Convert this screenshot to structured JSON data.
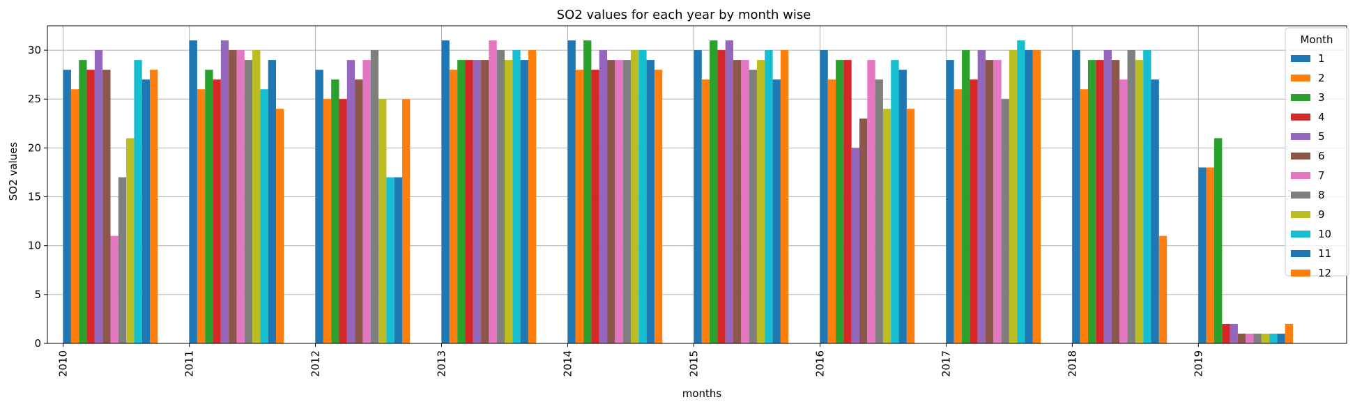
{
  "chart_data": {
    "type": "bar",
    "title": "SO2 values for each year by month wise",
    "xlabel": "months",
    "ylabel": "SO2 values",
    "ylim": [
      0,
      32.5
    ],
    "yticks": [
      0,
      5,
      10,
      15,
      20,
      25,
      30
    ],
    "grid": true,
    "legend": {
      "title": "Month",
      "placement": "top-right"
    },
    "categories": [
      "2010",
      "2011",
      "2012",
      "2013",
      "2014",
      "2015",
      "2016",
      "2017",
      "2018",
      "2019"
    ],
    "series": [
      {
        "name": "1",
        "color": "#1f77b4",
        "values": [
          28,
          31,
          28,
          31,
          31,
          30,
          30,
          29,
          30,
          18
        ]
      },
      {
        "name": "2",
        "color": "#ff7f0e",
        "values": [
          26,
          26,
          25,
          28,
          28,
          27,
          27,
          26,
          26,
          18
        ]
      },
      {
        "name": "3",
        "color": "#2ca02c",
        "values": [
          29,
          28,
          27,
          29,
          31,
          31,
          29,
          30,
          29,
          21
        ]
      },
      {
        "name": "4",
        "color": "#d62728",
        "values": [
          28,
          27,
          25,
          29,
          28,
          30,
          29,
          27,
          29,
          2
        ]
      },
      {
        "name": "5",
        "color": "#9467bd",
        "values": [
          30,
          31,
          29,
          29,
          30,
          31,
          20,
          30,
          30,
          2
        ]
      },
      {
        "name": "6",
        "color": "#8c564b",
        "values": [
          28,
          30,
          27,
          29,
          29,
          29,
          23,
          29,
          29,
          1
        ]
      },
      {
        "name": "7",
        "color": "#e377c2",
        "values": [
          11,
          30,
          29,
          31,
          29,
          29,
          29,
          29,
          27,
          1
        ]
      },
      {
        "name": "8",
        "color": "#7f7f7f",
        "values": [
          17,
          29,
          30,
          30,
          29,
          28,
          27,
          25,
          30,
          1
        ]
      },
      {
        "name": "9",
        "color": "#bcbd22",
        "values": [
          21,
          30,
          25,
          29,
          30,
          29,
          24,
          30,
          29,
          1
        ]
      },
      {
        "name": "10",
        "color": "#17becf",
        "values": [
          29,
          26,
          17,
          30,
          30,
          30,
          29,
          31,
          30,
          1
        ]
      },
      {
        "name": "11",
        "color": "#1f77b4",
        "values": [
          27,
          29,
          17,
          29,
          29,
          27,
          28,
          30,
          27,
          1
        ]
      },
      {
        "name": "12",
        "color": "#ff7f0e",
        "values": [
          28,
          24,
          25,
          30,
          28,
          30,
          24,
          30,
          11,
          2
        ]
      }
    ]
  }
}
